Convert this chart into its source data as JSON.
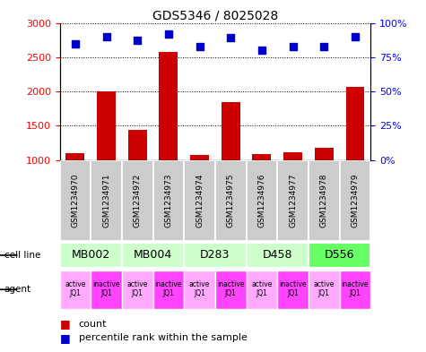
{
  "title": "GDS5346 / 8025028",
  "samples": [
    "GSM1234970",
    "GSM1234971",
    "GSM1234972",
    "GSM1234973",
    "GSM1234974",
    "GSM1234975",
    "GSM1234976",
    "GSM1234977",
    "GSM1234978",
    "GSM1234979"
  ],
  "counts": [
    1100,
    2000,
    1440,
    2570,
    1080,
    1840,
    1090,
    1120,
    1180,
    2070
  ],
  "percentile_ranks": [
    85,
    90,
    87,
    92,
    83,
    89,
    80,
    83,
    83,
    90
  ],
  "cell_lines": [
    {
      "label": "MB002",
      "cols": [
        0,
        1
      ],
      "color": "#ccffcc"
    },
    {
      "label": "MB004",
      "cols": [
        2,
        3
      ],
      "color": "#ccffcc"
    },
    {
      "label": "D283",
      "cols": [
        4,
        5
      ],
      "color": "#ccffcc"
    },
    {
      "label": "D458",
      "cols": [
        6,
        7
      ],
      "color": "#ccffcc"
    },
    {
      "label": "D556",
      "cols": [
        8,
        9
      ],
      "color": "#66ff66"
    }
  ],
  "agents": [
    "active\nJQ1",
    "inactive\nJQ1",
    "active\nJQ1",
    "inactive\nJQ1",
    "active\nJQ1",
    "inactive\nJQ1",
    "active\nJQ1",
    "inactive\nJQ1",
    "active\nJQ1",
    "inactive\nJQ1"
  ],
  "agent_active_color": "#ffaaff",
  "agent_inactive_color": "#ff44ff",
  "bar_color": "#cc0000",
  "dot_color": "#0000cc",
  "gsm_box_color": "#cccccc",
  "ylim_left": [
    1000,
    3000
  ],
  "ylim_right": [
    0,
    100
  ],
  "yticks_left": [
    1000,
    1500,
    2000,
    2500,
    3000
  ],
  "yticks_right": [
    0,
    25,
    50,
    75,
    100
  ],
  "right_tick_labels": [
    "0%",
    "25%",
    "50%",
    "75%",
    "100%"
  ]
}
